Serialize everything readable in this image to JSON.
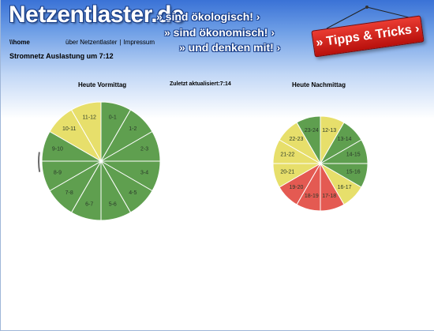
{
  "site": {
    "logo": "Netzentlaster.de",
    "slogans": [
      "» sind ökologisch! ›",
      "» sind ökonomisch! ›",
      "» und denken mit! ›"
    ],
    "tipps_label": "» Tipps & Tricks ›"
  },
  "nav": {
    "home": "\\\\home",
    "links": [
      "über Netzentlaster",
      "Impressum"
    ],
    "separator": "|"
  },
  "page_title": "Stromnetz Auslastung um 7:12",
  "updated": {
    "label": "Zuletzt aktualisiert:",
    "time": "7:14"
  },
  "colors": {
    "green": "#5f9f4f",
    "yellow": "#e7df6b",
    "red": "#e45a52"
  },
  "chart_data": [
    {
      "type": "pie",
      "title": "Heute Vormittag",
      "categories": [
        "0-1",
        "1-2",
        "2-3",
        "3-4",
        "4-5",
        "5-6",
        "6-7",
        "7-8",
        "8-9",
        "9-10",
        "10-11",
        "11-12"
      ],
      "values": [
        1,
        1,
        1,
        1,
        1,
        1,
        1,
        1,
        1,
        1,
        1,
        1
      ],
      "status": [
        "green",
        "green",
        "green",
        "green",
        "green",
        "green",
        "green",
        "green",
        "green",
        "green",
        "yellow",
        "yellow"
      ]
    },
    {
      "type": "pie",
      "title": "Heute Nachmittag",
      "categories": [
        "12-13",
        "13-14",
        "14-15",
        "15-16",
        "16-17",
        "17-18",
        "18-19",
        "19-20",
        "20-21",
        "21-22",
        "22-23",
        "23-24"
      ],
      "values": [
        1,
        1,
        1,
        1,
        1,
        1,
        1,
        1,
        1,
        1,
        1,
        1
      ],
      "status": [
        "yellow",
        "green",
        "green",
        "green",
        "yellow",
        "red",
        "red",
        "red",
        "yellow",
        "yellow",
        "yellow",
        "green"
      ]
    }
  ]
}
